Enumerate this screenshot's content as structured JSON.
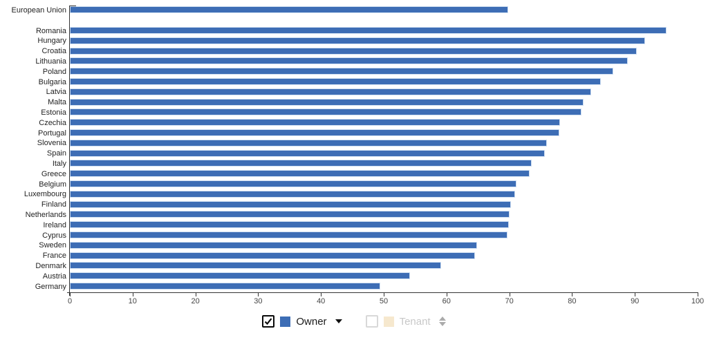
{
  "chart_data": {
    "type": "bar",
    "orientation": "horizontal",
    "title": "",
    "xlabel": "",
    "ylabel": "",
    "xlim": [
      0,
      100
    ],
    "xticks": [
      0,
      10,
      20,
      30,
      40,
      50,
      60,
      70,
      80,
      90,
      100
    ],
    "grid": false,
    "legend_position": "bottom",
    "separator_after_index": 0,
    "categories": [
      "European Union",
      "Romania",
      "Hungary",
      "Croatia",
      "Lithuania",
      "Poland",
      "Bulgaria",
      "Latvia",
      "Malta",
      "Estonia",
      "Czechia",
      "Portugal",
      "Slovenia",
      "Spain",
      "Italy",
      "Greece",
      "Belgium",
      "Luxembourg",
      "Finland",
      "Netherlands",
      "Ireland",
      "Cyprus",
      "Sweden",
      "France",
      "Denmark",
      "Austria",
      "Germany"
    ],
    "series": [
      {
        "name": "Owner",
        "color": "#3D6DB5",
        "visible": true,
        "values": [
          69.9,
          95.2,
          91.7,
          90.4,
          89.0,
          86.7,
          84.7,
          83.1,
          81.9,
          81.6,
          78.2,
          78.1,
          76.1,
          75.7,
          73.6,
          73.3,
          71.2,
          71.0,
          70.3,
          70.1,
          70.0,
          69.8,
          64.9,
          64.6,
          59.2,
          54.2,
          49.5
        ]
      },
      {
        "name": "Tenant",
        "color": "#F6E8CE",
        "visible": false,
        "values": []
      }
    ]
  },
  "legend": {
    "owner": {
      "label": "Owner",
      "checked": true,
      "swatch_color": "#3D6DB5"
    },
    "tenant": {
      "label": "Tenant",
      "checked": false,
      "swatch_color": "#F6E8CE"
    }
  },
  "colors": {
    "bar": "#3D6DB5",
    "bar_border": "#CFDFF2",
    "tenant_swatch": "#F6E8CE",
    "axis": "#333333",
    "tick_label": "#444444",
    "category_label": "#222222",
    "tenant_text": "#C8C8C8",
    "sort_icon_gray": "#ABABAB",
    "checkbox_unchecked_border": "#D8D8D8",
    "background": "#FFFFFF"
  }
}
